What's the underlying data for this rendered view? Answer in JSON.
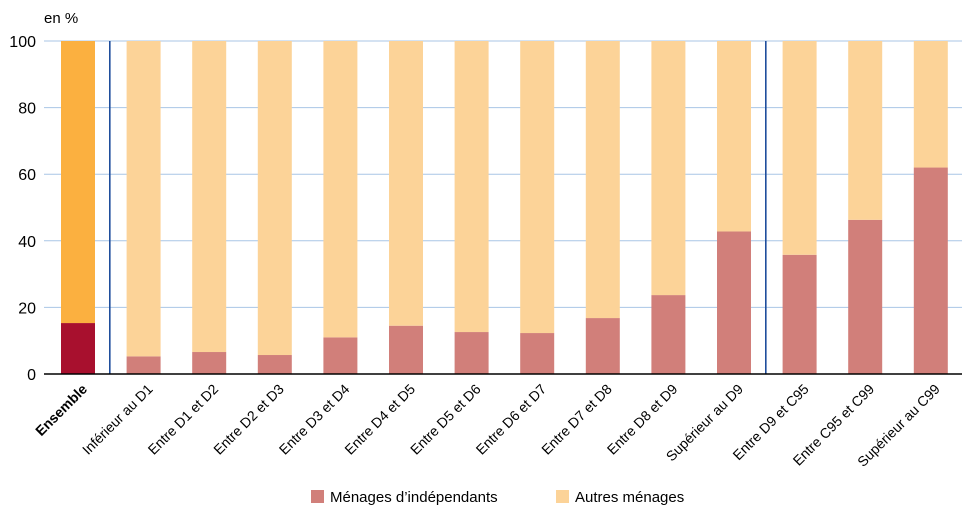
{
  "chart_data": {
    "type": "bar",
    "stacked": true,
    "title": "",
    "ylabel": "en %",
    "xlabel": "",
    "ylim": [
      0,
      100
    ],
    "yticks": [
      0,
      20,
      40,
      60,
      80,
      100
    ],
    "grid": true,
    "legend_position": "bottom",
    "categories": [
      "Ensemble",
      "Inférieur au D1",
      "Entre D1 et D2",
      "Entre D2 et D3",
      "Entre D3 et D4",
      "Entre D4 et D5",
      "Entre D5 et D6",
      "Entre D6 et D7",
      "Entre D7 et D8",
      "Entre D8 et D9",
      "Supérieur au D9",
      "Entre D9 et C95",
      "Entre C95 et C99",
      "Supérieur au C99"
    ],
    "series": [
      {
        "name": "Ménages d’indépendants",
        "color": "#d17f7a",
        "highlight_color": "#a8102e",
        "values": [
          15.3,
          5.3,
          6.6,
          5.7,
          11.0,
          14.5,
          12.6,
          12.3,
          16.8,
          23.7,
          42.8,
          35.8,
          46.3,
          62.0
        ]
      },
      {
        "name": "Autres ménages",
        "color": "#fcd398",
        "highlight_color": "#fbb040",
        "values": [
          84.7,
          94.7,
          93.4,
          94.3,
          89.0,
          85.5,
          87.4,
          87.7,
          83.2,
          76.3,
          57.2,
          64.2,
          53.7,
          38.0
        ]
      }
    ],
    "highlight_category": "Ensemble",
    "separators_after": [
      "Ensemble",
      "Supérieur au D9"
    ],
    "separator_color": "#1f4e9c",
    "grid_color": "#a9c6e6"
  }
}
